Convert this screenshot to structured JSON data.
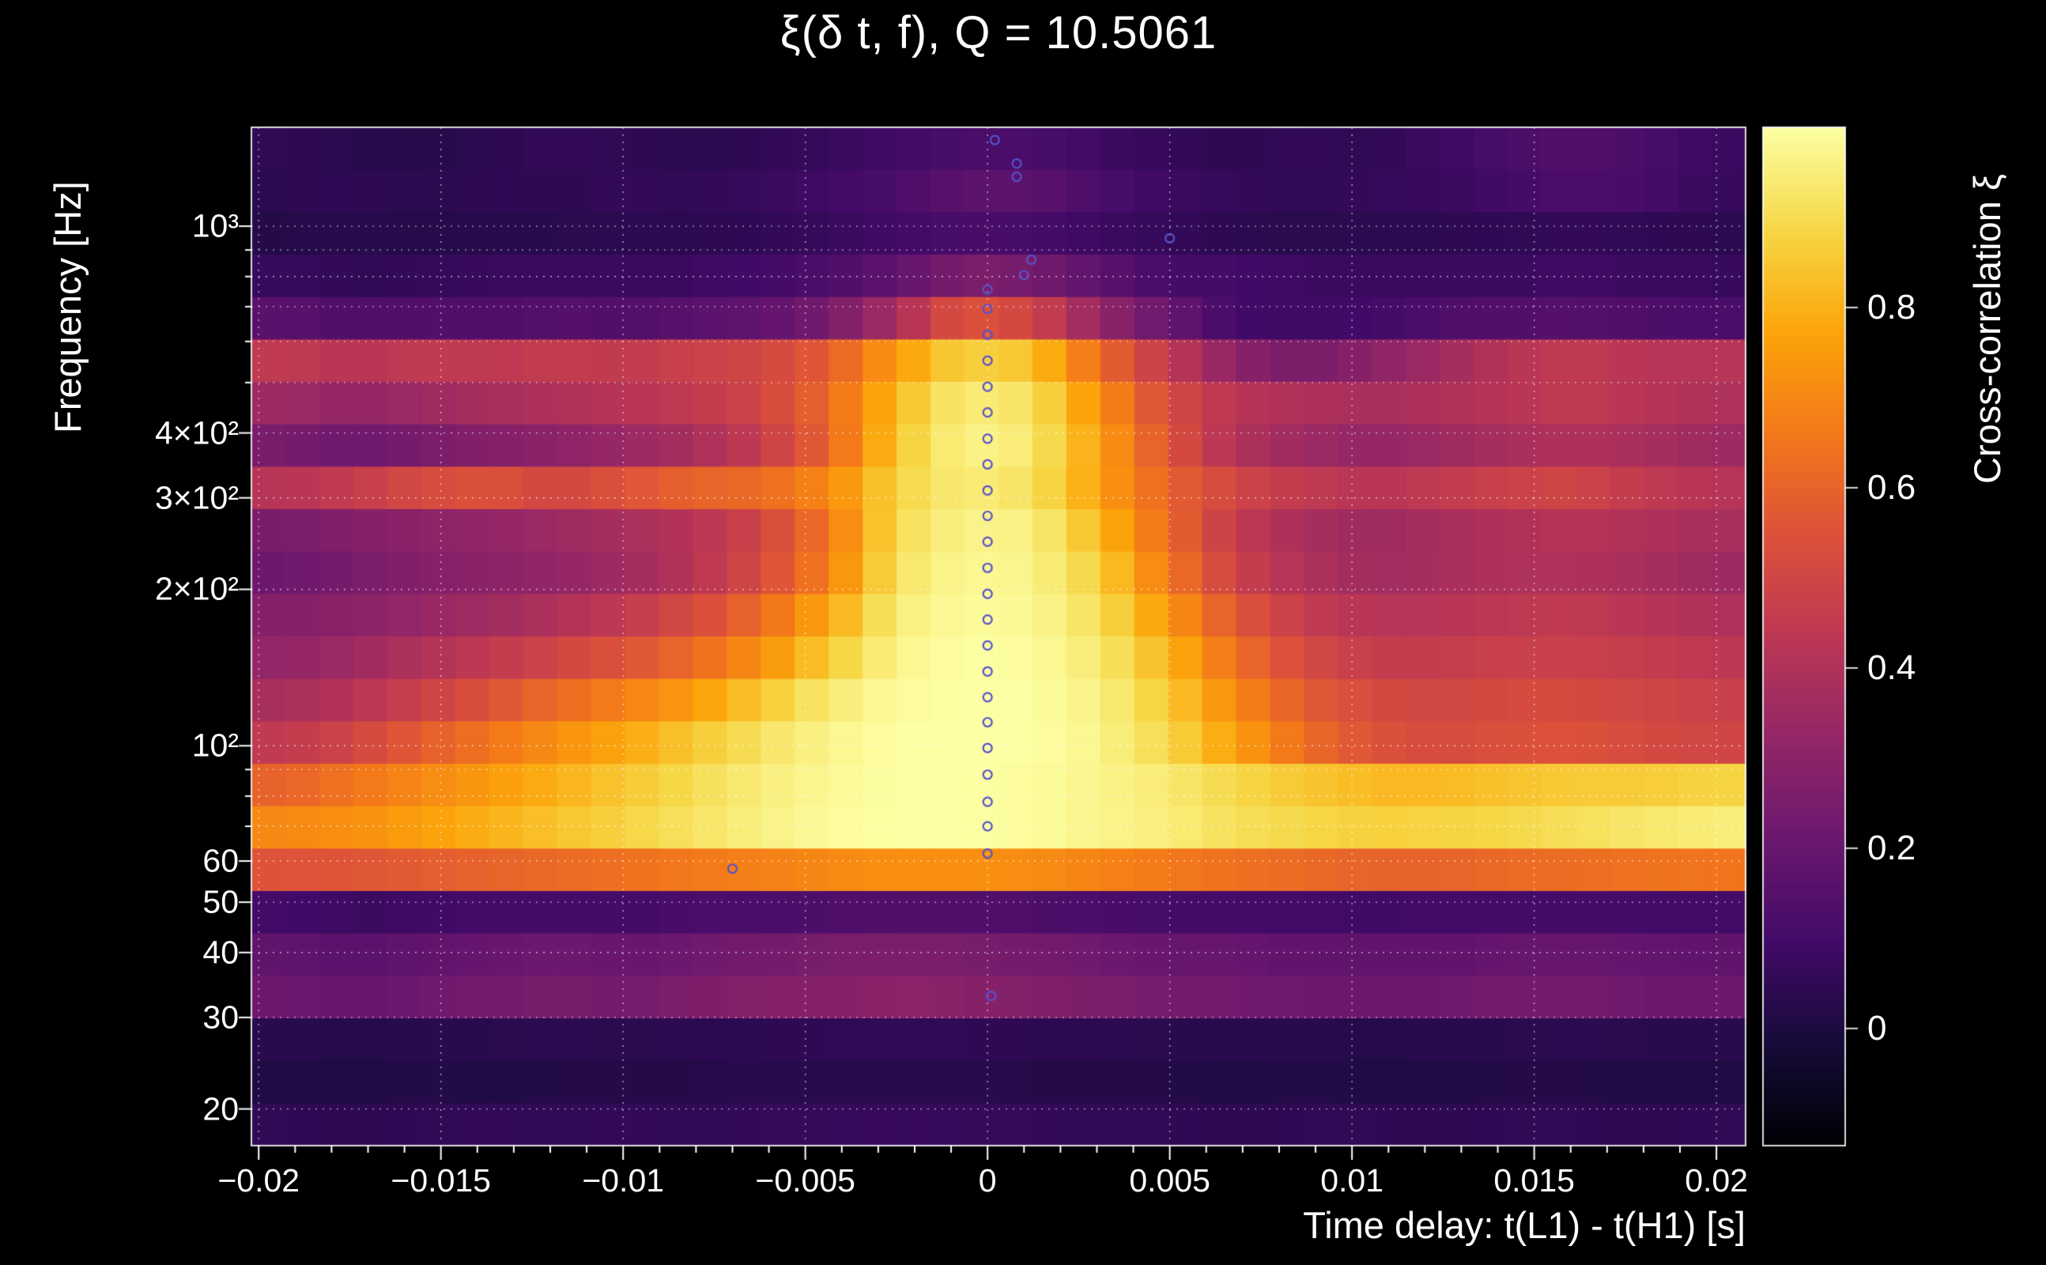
{
  "title": "ξ(δ t, f), Q = 10.5061",
  "colors": {
    "background": "#000000",
    "text": "#ffffff",
    "grid": "#ffffff",
    "frame": "#ffffff",
    "marker": "#5752c9"
  },
  "x_axis": {
    "label": "Time delay: t(L1) - t(H1) [s]",
    "min": -0.0202,
    "max": 0.0208,
    "minor_tick_step": 0.001,
    "ticks": [
      {
        "value": -0.02,
        "label": "−0.02"
      },
      {
        "value": -0.015,
        "label": "−0.015"
      },
      {
        "value": -0.01,
        "label": "−0.01"
      },
      {
        "value": -0.005,
        "label": "−0.005"
      },
      {
        "value": 0,
        "label": "0"
      },
      {
        "value": 0.005,
        "label": "0.005"
      },
      {
        "value": 0.01,
        "label": "0.01"
      },
      {
        "value": 0.015,
        "label": "0.015"
      },
      {
        "value": 0.02,
        "label": "0.02"
      }
    ]
  },
  "y_axis": {
    "label": "Frequency [Hz]",
    "scale": "log",
    "min": 17,
    "max": 1550,
    "ticks": [
      {
        "value": 1000,
        "label": "10³"
      },
      {
        "value": 400,
        "label": "4×10²"
      },
      {
        "value": 300,
        "label": "3×10²"
      },
      {
        "value": 200,
        "label": "2×10²"
      },
      {
        "value": 100,
        "label": "10²"
      },
      {
        "value": 60,
        "label": "60"
      },
      {
        "value": 50,
        "label": "50"
      },
      {
        "value": 40,
        "label": "40"
      },
      {
        "value": 30,
        "label": "30"
      },
      {
        "value": 20,
        "label": "20"
      }
    ],
    "gridlines": [
      20,
      30,
      40,
      50,
      60,
      70,
      80,
      90,
      100,
      200,
      300,
      400,
      500,
      600,
      700,
      800,
      900,
      1000
    ]
  },
  "colorbar": {
    "label": "Cross-correlation ξ",
    "min": -0.13,
    "max": 1.0,
    "ticks": [
      {
        "value": 0.8,
        "label": "0.8"
      },
      {
        "value": 0.6,
        "label": "0.6"
      },
      {
        "value": 0.4,
        "label": "0.4"
      },
      {
        "value": 0.2,
        "label": "0.2"
      },
      {
        "value": 0,
        "label": "0"
      }
    ]
  },
  "colormap": {
    "name": "inferno",
    "stops": [
      [
        0.0,
        "#000004"
      ],
      [
        0.1,
        "#160b39"
      ],
      [
        0.2,
        "#420a68"
      ],
      [
        0.3,
        "#6a176e"
      ],
      [
        0.4,
        "#932667"
      ],
      [
        0.5,
        "#bc3754"
      ],
      [
        0.6,
        "#dd513a"
      ],
      [
        0.7,
        "#f37819"
      ],
      [
        0.8,
        "#fca50a"
      ],
      [
        0.9,
        "#f6d746"
      ],
      [
        1.0,
        "#fcffa4"
      ]
    ]
  },
  "chart_data": {
    "type": "heatmap",
    "title": "ξ(δ t, f), Q = 10.5061",
    "xlabel": "Time delay: t(L1) - t(H1) [s]",
    "ylabel": "Frequency [Hz]",
    "value_name": "Cross-correlation ξ",
    "x_range": [
      -0.0202,
      0.0208
    ],
    "y_range_hz": [
      17,
      1550
    ],
    "y_scale": "log",
    "value_range": [
      -0.13,
      1.0
    ],
    "row_frequencies_hz": [
      1410,
      1170,
      975,
      810,
      670,
      555,
      460,
      383,
      318,
      264,
      219,
      182,
      151,
      125,
      104,
      86,
      72,
      60,
      49,
      41,
      34,
      28,
      23,
      19
    ],
    "values": [
      [
        0.05,
        0.03,
        0.02,
        0.04,
        0.06,
        0.05,
        0.03,
        0.05,
        0.07,
        0.09,
        0.12,
        0.12,
        0.09,
        0.06,
        0.04,
        0.06,
        0.05,
        0.08,
        0.12,
        0.15,
        0.12,
        0.08
      ],
      [
        0.04,
        0.05,
        0.03,
        0.05,
        0.04,
        0.06,
        0.05,
        0.07,
        0.09,
        0.12,
        0.17,
        0.17,
        0.12,
        0.08,
        0.06,
        0.05,
        0.06,
        0.07,
        0.1,
        0.13,
        0.11,
        0.07
      ],
      [
        0.02,
        0.03,
        0.02,
        0.03,
        0.03,
        0.04,
        0.04,
        0.05,
        0.07,
        0.09,
        0.12,
        0.11,
        0.08,
        0.06,
        0.04,
        0.03,
        0.04,
        0.04,
        0.05,
        0.06,
        0.05,
        0.04
      ],
      [
        0.07,
        0.05,
        0.06,
        0.07,
        0.08,
        0.07,
        0.08,
        0.1,
        0.13,
        0.18,
        0.26,
        0.24,
        0.17,
        0.11,
        0.1,
        0.08,
        0.07,
        0.08,
        0.08,
        0.09,
        0.08,
        0.07
      ],
      [
        0.16,
        0.13,
        0.14,
        0.13,
        0.15,
        0.14,
        0.16,
        0.18,
        0.24,
        0.38,
        0.56,
        0.5,
        0.32,
        0.2,
        0.1,
        0.08,
        0.1,
        0.13,
        0.14,
        0.15,
        0.13,
        0.12
      ],
      [
        0.45,
        0.42,
        0.45,
        0.44,
        0.46,
        0.45,
        0.48,
        0.5,
        0.58,
        0.75,
        0.88,
        0.84,
        0.62,
        0.45,
        0.3,
        0.25,
        0.3,
        0.36,
        0.42,
        0.45,
        0.42,
        0.42
      ],
      [
        0.35,
        0.32,
        0.35,
        0.38,
        0.4,
        0.42,
        0.45,
        0.5,
        0.62,
        0.82,
        0.95,
        0.92,
        0.72,
        0.52,
        0.42,
        0.4,
        0.38,
        0.4,
        0.42,
        0.45,
        0.42,
        0.4
      ],
      [
        0.25,
        0.22,
        0.25,
        0.28,
        0.3,
        0.34,
        0.38,
        0.46,
        0.6,
        0.85,
        0.97,
        0.94,
        0.76,
        0.55,
        0.4,
        0.35,
        0.32,
        0.35,
        0.38,
        0.4,
        0.38,
        0.35
      ],
      [
        0.42,
        0.46,
        0.52,
        0.55,
        0.5,
        0.55,
        0.6,
        0.62,
        0.7,
        0.88,
        0.95,
        0.92,
        0.76,
        0.6,
        0.5,
        0.45,
        0.42,
        0.45,
        0.48,
        0.5,
        0.45,
        0.42
      ],
      [
        0.25,
        0.28,
        0.3,
        0.32,
        0.35,
        0.38,
        0.42,
        0.5,
        0.65,
        0.9,
        0.97,
        0.96,
        0.82,
        0.62,
        0.45,
        0.38,
        0.35,
        0.38,
        0.4,
        0.42,
        0.4,
        0.38
      ],
      [
        0.22,
        0.25,
        0.28,
        0.3,
        0.32,
        0.36,
        0.42,
        0.52,
        0.68,
        0.92,
        0.98,
        0.97,
        0.87,
        0.66,
        0.48,
        0.4,
        0.36,
        0.38,
        0.4,
        0.4,
        0.38,
        0.35
      ],
      [
        0.28,
        0.3,
        0.33,
        0.36,
        0.4,
        0.45,
        0.52,
        0.62,
        0.78,
        0.95,
        0.99,
        0.98,
        0.91,
        0.74,
        0.56,
        0.46,
        0.42,
        0.42,
        0.44,
        0.45,
        0.42,
        0.4
      ],
      [
        0.32,
        0.35,
        0.4,
        0.45,
        0.5,
        0.55,
        0.62,
        0.72,
        0.86,
        0.97,
        1.0,
        0.99,
        0.94,
        0.81,
        0.63,
        0.52,
        0.46,
        0.46,
        0.48,
        0.48,
        0.46,
        0.44
      ],
      [
        0.38,
        0.42,
        0.48,
        0.55,
        0.62,
        0.68,
        0.75,
        0.85,
        0.94,
        0.99,
        1.0,
        1.0,
        0.96,
        0.86,
        0.7,
        0.58,
        0.52,
        0.5,
        0.52,
        0.52,
        0.5,
        0.48
      ],
      [
        0.45,
        0.5,
        0.58,
        0.65,
        0.72,
        0.78,
        0.85,
        0.92,
        0.97,
        1.0,
        1.0,
        1.0,
        0.97,
        0.89,
        0.76,
        0.63,
        0.55,
        0.52,
        0.54,
        0.55,
        0.52,
        0.5
      ],
      [
        0.6,
        0.65,
        0.7,
        0.75,
        0.8,
        0.85,
        0.9,
        0.95,
        0.98,
        1.0,
        1.0,
        0.99,
        0.97,
        0.94,
        0.89,
        0.85,
        0.82,
        0.82,
        0.84,
        0.86,
        0.86,
        0.88
      ],
      [
        0.7,
        0.72,
        0.76,
        0.8,
        0.84,
        0.88,
        0.92,
        0.96,
        0.99,
        1.0,
        1.0,
        0.99,
        0.97,
        0.95,
        0.91,
        0.89,
        0.87,
        0.88,
        0.89,
        0.91,
        0.93,
        0.95
      ],
      [
        0.55,
        0.56,
        0.58,
        0.6,
        0.62,
        0.64,
        0.66,
        0.68,
        0.7,
        0.72,
        0.72,
        0.71,
        0.69,
        0.66,
        0.64,
        0.62,
        0.6,
        0.6,
        0.62,
        0.63,
        0.64,
        0.65
      ],
      [
        0.1,
        0.08,
        0.09,
        0.1,
        0.11,
        0.1,
        0.12,
        0.12,
        0.13,
        0.14,
        0.14,
        0.13,
        0.12,
        0.11,
        0.1,
        0.1,
        0.09,
        0.1,
        0.1,
        0.11,
        0.1,
        0.1
      ],
      [
        0.18,
        0.16,
        0.18,
        0.2,
        0.22,
        0.2,
        0.22,
        0.24,
        0.25,
        0.26,
        0.25,
        0.24,
        0.22,
        0.2,
        0.2,
        0.18,
        0.18,
        0.18,
        0.2,
        0.2,
        0.19,
        0.18
      ],
      [
        0.22,
        0.2,
        0.22,
        0.24,
        0.25,
        0.24,
        0.26,
        0.28,
        0.28,
        0.3,
        0.29,
        0.27,
        0.26,
        0.24,
        0.23,
        0.22,
        0.22,
        0.22,
        0.24,
        0.24,
        0.22,
        0.22
      ],
      [
        0.03,
        0.02,
        0.03,
        0.03,
        0.04,
        0.03,
        0.04,
        0.04,
        0.05,
        0.05,
        0.05,
        0.04,
        0.04,
        0.03,
        0.03,
        0.03,
        0.02,
        0.03,
        0.03,
        0.04,
        0.03,
        0.03
      ],
      [
        0.01,
        0.01,
        0.02,
        0.01,
        0.02,
        0.02,
        0.02,
        0.03,
        0.03,
        0.03,
        0.03,
        0.02,
        0.02,
        0.02,
        0.01,
        0.02,
        0.01,
        0.01,
        0.02,
        0.02,
        0.01,
        0.01
      ],
      [
        0.05,
        0.04,
        0.05,
        0.06,
        0.05,
        0.06,
        0.05,
        0.06,
        0.06,
        0.07,
        0.06,
        0.06,
        0.05,
        0.05,
        0.04,
        0.05,
        0.05,
        0.04,
        0.05,
        0.05,
        0.04,
        0.05
      ]
    ],
    "markers": [
      {
        "dt": 0,
        "f": 62
      },
      {
        "dt": 0,
        "f": 70
      },
      {
        "dt": 0,
        "f": 78
      },
      {
        "dt": 0,
        "f": 88
      },
      {
        "dt": 0,
        "f": 99
      },
      {
        "dt": 0,
        "f": 111
      },
      {
        "dt": 0,
        "f": 124
      },
      {
        "dt": 0,
        "f": 139
      },
      {
        "dt": 0,
        "f": 156
      },
      {
        "dt": 0,
        "f": 175
      },
      {
        "dt": 0,
        "f": 196
      },
      {
        "dt": 0,
        "f": 220
      },
      {
        "dt": 0,
        "f": 247
      },
      {
        "dt": 0,
        "f": 277
      },
      {
        "dt": 0,
        "f": 310
      },
      {
        "dt": 0,
        "f": 348
      },
      {
        "dt": 0,
        "f": 390
      },
      {
        "dt": 0,
        "f": 438
      },
      {
        "dt": 0,
        "f": 491
      },
      {
        "dt": 0,
        "f": 551
      },
      {
        "dt": 0,
        "f": 618
      },
      {
        "dt": 0,
        "f": 693
      },
      {
        "dt": 0,
        "f": 755
      },
      {
        "dt": 0.001,
        "f": 805
      },
      {
        "dt": 0.0012,
        "f": 862
      },
      {
        "dt": 0.005,
        "f": 948
      },
      {
        "dt": 0.0008,
        "f": 1245
      },
      {
        "dt": 0.0008,
        "f": 1320
      },
      {
        "dt": 0.0002,
        "f": 1465
      },
      {
        "dt": -0.007,
        "f": 58
      },
      {
        "dt": 0.0001,
        "f": 33
      }
    ]
  }
}
